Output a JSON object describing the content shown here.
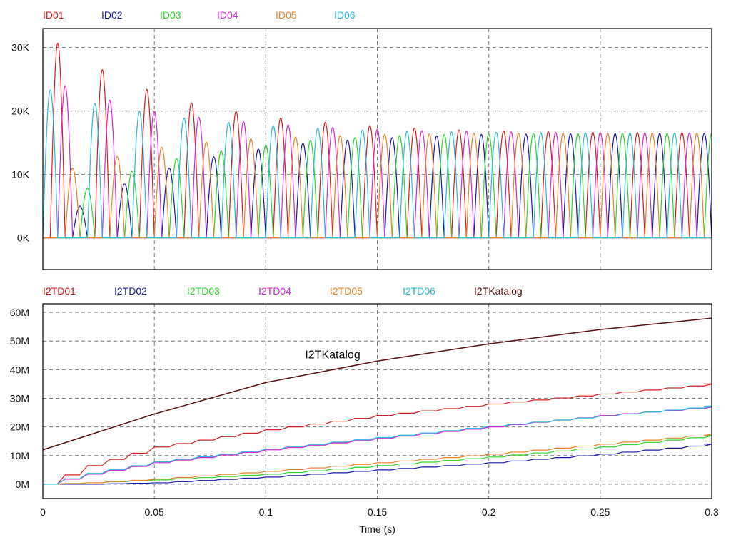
{
  "chart_data": [
    {
      "type": "line",
      "title": "",
      "xlabel": "",
      "ylabel": "",
      "xlim": [
        0,
        0.3
      ],
      "ylim": [
        -5000,
        33000
      ],
      "y_ticks": [
        0,
        10000,
        20000,
        30000
      ],
      "y_tick_labels": [
        "0K",
        "10K",
        "20K",
        "30K"
      ],
      "x_ticks": [
        0,
        0.05,
        0.1,
        0.15,
        0.2,
        0.25,
        0.3
      ],
      "grid": true,
      "legend_position": "top",
      "waveform": {
        "period_s": 0.02,
        "phase_spacing_s": 0.0033333,
        "pulse_width_s": 0.00667,
        "peak_envelope": {
          "steady_state": 16500,
          "initial_peak": 30700,
          "decay_time_constant_s": 0.05
        }
      },
      "series": [
        {
          "name": "ID01",
          "color": "#d42020",
          "phase_index": 1,
          "first_peaks": [
            30700,
            26500,
            23400,
            21300,
            19900,
            18900,
            18200,
            17700,
            17300,
            17000
          ]
        },
        {
          "name": "ID02",
          "color": "#1a1aa8",
          "phase_index": 4,
          "first_peaks": [
            5000,
            8500,
            11000,
            12800,
            14000,
            14900,
            15400,
            15800,
            16100,
            16300
          ]
        },
        {
          "name": "ID03",
          "color": "#2fd42f",
          "phase_index": 5,
          "first_peaks": [
            7800,
            10500,
            12500,
            13700,
            14600,
            15300,
            15800,
            16100,
            16300,
            16400
          ]
        },
        {
          "name": "ID04",
          "color": "#d42ad4",
          "phase_index": 2,
          "first_peaks": [
            24000,
            21700,
            20000,
            19000,
            18300,
            17800,
            17400,
            17100,
            16900,
            16800
          ]
        },
        {
          "name": "ID05",
          "color": "#e8822a",
          "phase_index": 3,
          "first_peaks": [
            11000,
            12800,
            14300,
            15100,
            15600,
            15900,
            16100,
            16300,
            16400,
            16500
          ]
        },
        {
          "name": "ID06",
          "color": "#2ab8d8",
          "phase_index": 0,
          "first_peaks": [
            23300,
            21200,
            19900,
            18900,
            18200,
            17700,
            17300,
            17000,
            16800,
            16700
          ]
        }
      ]
    },
    {
      "type": "line",
      "title": "",
      "xlabel": "Time (s)",
      "ylabel": "",
      "xlim": [
        0,
        0.3
      ],
      "ylim": [
        -5000000,
        63000000
      ],
      "y_ticks": [
        0,
        10000000,
        20000000,
        30000000,
        40000000,
        50000000,
        60000000
      ],
      "y_tick_labels": [
        "0M",
        "10M",
        "20M",
        "30M",
        "40M",
        "50M",
        "60M"
      ],
      "x_ticks": [
        0,
        0.05,
        0.1,
        0.15,
        0.2,
        0.25,
        0.3
      ],
      "x_tick_labels": [
        "0",
        "0.05",
        "0.1",
        "0.15",
        "0.2",
        "0.25",
        "0.3"
      ],
      "grid": true,
      "legend_position": "top",
      "annotations": [
        {
          "text": "I2TKatalog",
          "x": 0.13,
          "y": 44000000
        }
      ],
      "series": [
        {
          "name": "I2TD01",
          "color": "#d42020",
          "x": [
            0,
            0.02,
            0.05,
            0.1,
            0.15,
            0.2,
            0.25,
            0.3
          ],
          "y": [
            0,
            6500000,
            13000000,
            19000000,
            24000000,
            28000000,
            31500000,
            35000000
          ]
        },
        {
          "name": "I2TD02",
          "color": "#1a1aa8",
          "x": [
            0,
            0.02,
            0.05,
            0.1,
            0.15,
            0.2,
            0.25,
            0.3
          ],
          "y": [
            0,
            0,
            500000,
            2500000,
            5000000,
            7500000,
            10500000,
            14000000
          ]
        },
        {
          "name": "I2TD03",
          "color": "#2fd42f",
          "x": [
            0,
            0.02,
            0.05,
            0.1,
            0.15,
            0.2,
            0.25,
            0.3
          ],
          "y": [
            0,
            500000,
            1500000,
            3500000,
            6500000,
            9500000,
            13000000,
            17000000
          ]
        },
        {
          "name": "I2TD04",
          "color": "#d42ad4",
          "x": [
            0,
            0.02,
            0.05,
            0.1,
            0.15,
            0.2,
            0.25,
            0.3
          ],
          "y": [
            0,
            3500000,
            7500000,
            12000000,
            16000000,
            20000000,
            24000000,
            27000000
          ]
        },
        {
          "name": "I2TD05",
          "color": "#e8822a",
          "x": [
            0,
            0.02,
            0.05,
            0.1,
            0.15,
            0.2,
            0.25,
            0.3
          ],
          "y": [
            0,
            500000,
            1800000,
            4500000,
            7500000,
            10500000,
            14000000,
            17500000
          ]
        },
        {
          "name": "I2TD06",
          "color": "#2ab8d8",
          "x": [
            0,
            0.02,
            0.05,
            0.1,
            0.15,
            0.2,
            0.25,
            0.3
          ],
          "y": [
            0,
            3800000,
            7800000,
            12300000,
            16300000,
            20300000,
            23800000,
            27300000
          ]
        },
        {
          "name": "I2TKatalog",
          "color": "#5a0f0f",
          "x": [
            0,
            0.05,
            0.1,
            0.15,
            0.2,
            0.25,
            0.3
          ],
          "y": [
            12000000,
            24500000,
            35500000,
            43000000,
            49000000,
            54000000,
            58000000
          ]
        }
      ]
    }
  ]
}
